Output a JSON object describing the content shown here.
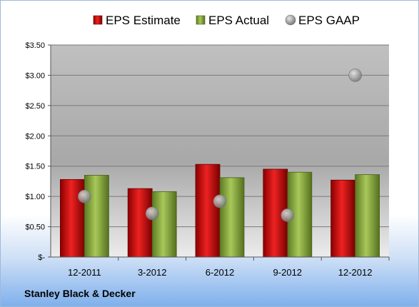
{
  "company": "Stanley Black & Decker",
  "chart_data": {
    "type": "bar",
    "categories": [
      "12-2011",
      "3-2012",
      "6-2012",
      "9-2012",
      "12-2012"
    ],
    "series": [
      {
        "name": "EPS Estimate",
        "type": "bar",
        "color": "#cc1111",
        "values": [
          1.28,
          1.13,
          1.53,
          1.45,
          1.27
        ]
      },
      {
        "name": "EPS Actual",
        "type": "bar",
        "color": "#86a83c",
        "values": [
          1.35,
          1.08,
          1.31,
          1.4,
          1.36
        ]
      },
      {
        "name": "EPS GAAP",
        "type": "scatter",
        "color": "#b0b0b0",
        "values": [
          1.0,
          0.72,
          0.92,
          0.69,
          3.0
        ]
      }
    ],
    "ylim": [
      0,
      3.5
    ],
    "yticks": [
      0,
      0.5,
      1.0,
      1.5,
      2.0,
      2.5,
      3.0,
      3.5
    ],
    "ytick_labels": [
      "$-",
      "$0.50",
      "$1.00",
      "$1.50",
      "$2.00",
      "$2.50",
      "$3.00",
      "$3.50"
    ],
    "grid": true,
    "legend": "top"
  }
}
